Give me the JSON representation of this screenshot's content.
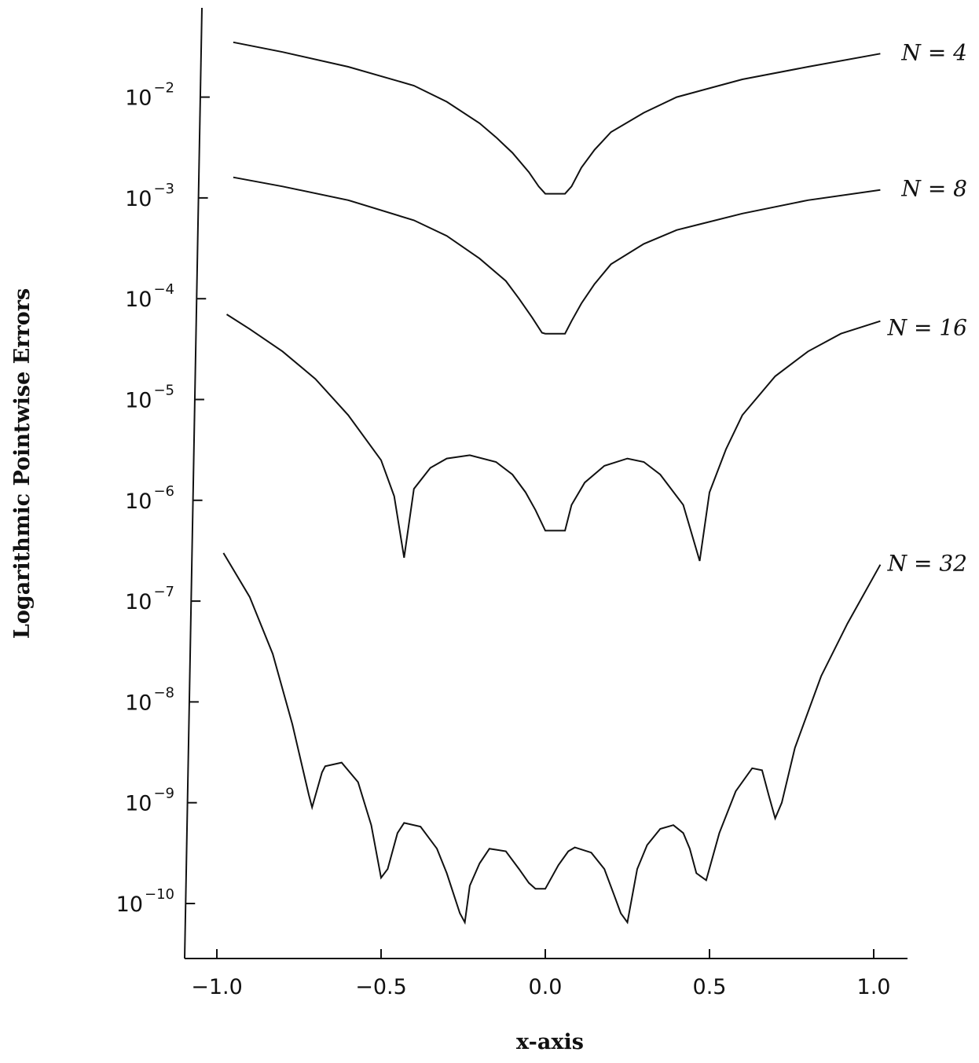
{
  "chart_data": {
    "type": "line",
    "title": "",
    "xlabel": "x-axis",
    "ylabel": "Logarithmic Pointwise Errors",
    "yscale": "log",
    "xlim": [
      -1.1,
      1.1
    ],
    "ylim": [
      1e-11,
      0.1
    ],
    "x_ticks": [
      {
        "value": -1.0,
        "label": "−1.0"
      },
      {
        "value": -0.5,
        "label": "−0.5"
      },
      {
        "value": 0.0,
        "label": "0.0"
      },
      {
        "value": 0.5,
        "label": "0.5"
      },
      {
        "value": 1.0,
        "label": "1.0"
      }
    ],
    "y_ticks": [
      {
        "exp": -2,
        "base": "10",
        "sup": "−2"
      },
      {
        "exp": -3,
        "base": "10",
        "sup": "−3"
      },
      {
        "exp": -4,
        "base": "10",
        "sup": "−4"
      },
      {
        "exp": -5,
        "base": "10",
        "sup": "−5"
      },
      {
        "exp": -6,
        "base": "10",
        "sup": "−6"
      },
      {
        "exp": -7,
        "base": "10",
        "sup": "−7"
      },
      {
        "exp": -8,
        "base": "10",
        "sup": "−8"
      },
      {
        "exp": -9,
        "base": "10",
        "sup": "−9"
      },
      {
        "exp": -10,
        "base": "10",
        "sup": "−10"
      }
    ],
    "grid": false,
    "legend": "inline labels at right end of each curve",
    "series": [
      {
        "name": "N = 4",
        "x": [
          -0.95,
          -0.8,
          -0.6,
          -0.4,
          -0.3,
          -0.2,
          -0.15,
          -0.1,
          -0.05,
          -0.02,
          0.0,
          0.06,
          0.08,
          0.11,
          0.15,
          0.2,
          0.3,
          0.4,
          0.6,
          0.8,
          1.02
        ],
        "y": [
          0.035,
          0.028,
          0.02,
          0.013,
          0.009,
          0.0055,
          0.004,
          0.0028,
          0.0018,
          0.0013,
          0.0011,
          0.0011,
          0.0013,
          0.002,
          0.003,
          0.0045,
          0.007,
          0.01,
          0.015,
          0.02,
          0.027
        ]
      },
      {
        "name": "N = 8",
        "x": [
          -0.95,
          -0.8,
          -0.6,
          -0.4,
          -0.3,
          -0.2,
          -0.12,
          -0.08,
          -0.04,
          -0.01,
          0.0,
          0.06,
          0.08,
          0.11,
          0.15,
          0.2,
          0.3,
          0.4,
          0.6,
          0.8,
          1.02
        ],
        "y": [
          0.0016,
          0.0013,
          0.00095,
          0.0006,
          0.00042,
          0.00025,
          0.00015,
          0.0001,
          6.5e-05,
          4.6e-05,
          4.5e-05,
          4.5e-05,
          6e-05,
          9e-05,
          0.00014,
          0.00022,
          0.00035,
          0.00048,
          0.0007,
          0.00095,
          0.0012
        ]
      },
      {
        "name": "N = 16",
        "x": [
          -0.97,
          -0.9,
          -0.8,
          -0.7,
          -0.6,
          -0.5,
          -0.46,
          -0.43,
          -0.4,
          -0.35,
          -0.3,
          -0.23,
          -0.15,
          -0.1,
          -0.06,
          -0.03,
          0.0,
          0.06,
          0.08,
          0.12,
          0.18,
          0.25,
          0.3,
          0.35,
          0.42,
          0.47,
          0.5,
          0.55,
          0.6,
          0.7,
          0.8,
          0.9,
          1.02
        ],
        "y": [
          7e-05,
          5e-05,
          3e-05,
          1.6e-05,
          7e-06,
          2.5e-06,
          1.1e-06,
          2.7e-07,
          1.3e-06,
          2.1e-06,
          2.6e-06,
          2.8e-06,
          2.4e-06,
          1.8e-06,
          1.2e-06,
          8e-07,
          5e-07,
          5e-07,
          9e-07,
          1.5e-06,
          2.2e-06,
          2.6e-06,
          2.4e-06,
          1.8e-06,
          9e-07,
          2.5e-07,
          1.2e-06,
          3.2e-06,
          7e-06,
          1.7e-05,
          3e-05,
          4.5e-05,
          6e-05
        ]
      },
      {
        "name": "N = 32",
        "x": [
          -0.98,
          -0.9,
          -0.83,
          -0.77,
          -0.72,
          -0.71,
          -0.68,
          -0.67,
          -0.62,
          -0.57,
          -0.53,
          -0.5,
          -0.48,
          -0.45,
          -0.43,
          -0.38,
          -0.33,
          -0.3,
          -0.26,
          -0.245,
          -0.23,
          -0.2,
          -0.17,
          -0.12,
          -0.08,
          -0.05,
          -0.03,
          0.0,
          0.04,
          0.07,
          0.09,
          0.14,
          0.18,
          0.21,
          0.23,
          0.25,
          0.28,
          0.31,
          0.35,
          0.39,
          0.42,
          0.44,
          0.46,
          0.49,
          0.53,
          0.58,
          0.63,
          0.66,
          0.68,
          0.7,
          0.72,
          0.76,
          0.84,
          0.92,
          1.02
        ],
        "y": [
          3e-07,
          1.1e-07,
          3e-08,
          6e-09,
          1.2e-09,
          9e-10,
          2e-09,
          2.3e-09,
          2.5e-09,
          1.6e-09,
          6e-10,
          1.8e-10,
          2.2e-10,
          5e-10,
          6.3e-10,
          5.8e-10,
          3.5e-10,
          2e-10,
          8e-11,
          6.5e-11,
          1.5e-10,
          2.5e-10,
          3.5e-10,
          3.3e-10,
          2.2e-10,
          1.6e-10,
          1.4e-10,
          1.4e-10,
          2.4e-10,
          3.3e-10,
          3.6e-10,
          3.2e-10,
          2.2e-10,
          1.2e-10,
          8e-11,
          6.5e-11,
          2.2e-10,
          3.8e-10,
          5.5e-10,
          6e-10,
          5e-10,
          3.5e-10,
          2e-10,
          1.7e-10,
          5e-10,
          1.3e-09,
          2.2e-09,
          2.1e-09,
          1.2e-09,
          7e-10,
          1e-09,
          3.5e-09,
          1.8e-08,
          6e-08,
          2.3e-07
        ]
      }
    ]
  }
}
